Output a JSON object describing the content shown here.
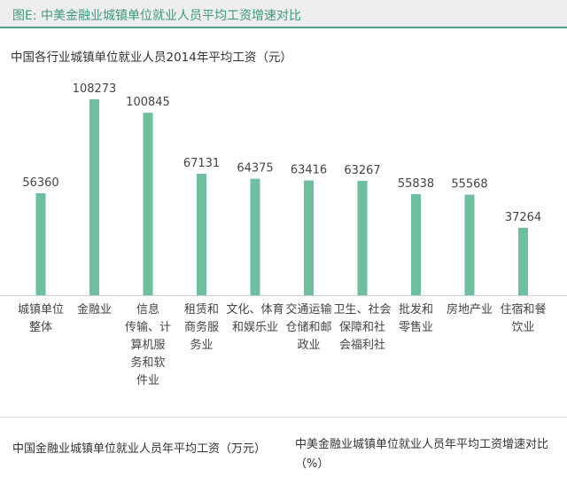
{
  "figure": {
    "header": "图E: 中美金融业城镇单位就业人员平均工资增速对比",
    "bottom_left_title": "中国金融业城镇单位就业人员年平均工资（万元）",
    "bottom_right_title": "中美金融业城镇单位就业人员年平均工资增速对比（%）"
  },
  "chart_data": {
    "type": "bar",
    "title": "中国各行业城镇单位就业人员2014年平均工资（元）",
    "categories": [
      "城镇单位整体",
      "金融业",
      "信息传输、计算机服务和软件业",
      "租赁和商务服务业",
      "文化、体育和娱乐业",
      "交通运输仓储和邮政业",
      "卫生、社会保障和社会福利社",
      "批发和零售业",
      "房地产业",
      "住宿和餐饮业"
    ],
    "category_lines": [
      [
        "城镇单位",
        "整体"
      ],
      [
        "金融业"
      ],
      [
        "信息",
        "传输、计",
        "算机服",
        "务和软",
        "件业"
      ],
      [
        "租赁和",
        "商务服",
        "务业"
      ],
      [
        "文化、体育",
        "和娱乐业"
      ],
      [
        "交通运输",
        "仓储和邮",
        "政业"
      ],
      [
        "卫生、社会",
        "保障和社",
        "会福利社"
      ],
      [
        "批发和",
        "零售业"
      ],
      [
        "房地产业"
      ],
      [
        "住宿和餐",
        "饮业"
      ]
    ],
    "values": [
      56360,
      108273,
      100845,
      67131,
      64375,
      63416,
      63267,
      55838,
      55568,
      37264
    ],
    "value_labels": [
      "56360",
      "108273",
      "100845",
      "67131",
      "64375",
      "63416",
      "63267",
      "55838",
      "55568",
      "37264"
    ],
    "bar_color": "#6dbf9e",
    "xlabel": "",
    "ylabel": "",
    "grid": false,
    "legend": "none"
  }
}
